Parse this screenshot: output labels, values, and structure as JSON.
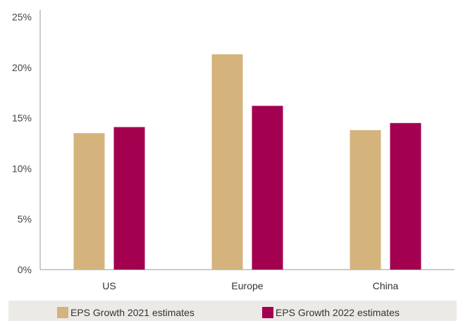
{
  "chart_data": {
    "type": "bar",
    "categories": [
      "US",
      "Europe",
      "China"
    ],
    "series": [
      {
        "name": "EPS Growth 2021 estimates",
        "color": "#d4b47c",
        "values": [
          13.5,
          21.3,
          13.8
        ]
      },
      {
        "name": "EPS Growth 2022 estimates",
        "color": "#a3004f",
        "values": [
          14.1,
          16.2,
          14.5
        ]
      }
    ],
    "yticks": [
      "0%",
      "5%",
      "10%",
      "15%",
      "20%",
      "25%"
    ],
    "ylim": [
      0,
      25
    ],
    "grid": false,
    "legend_position": "bottom"
  }
}
